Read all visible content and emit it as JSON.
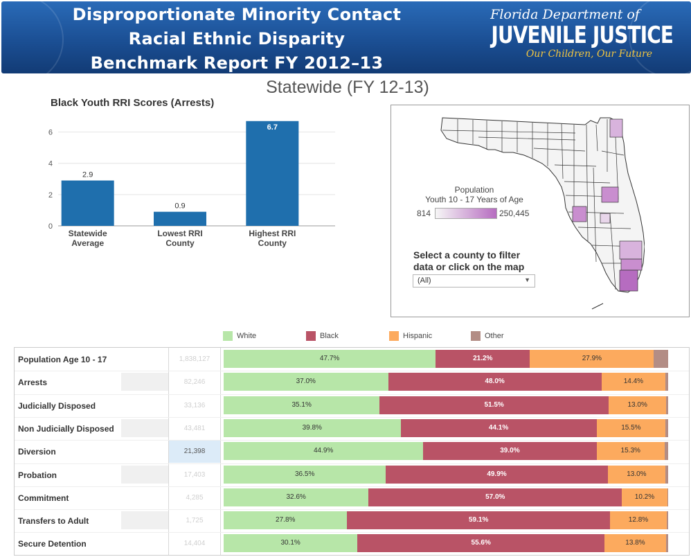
{
  "banner": {
    "title_lines": [
      "Disproportionate Minority Contact",
      "Racial Ethnic Disparity",
      "Benchmark Report FY 2012–13"
    ],
    "dept_line1": "Florida Department of",
    "dept_line2": "JUVENILE JUSTICE",
    "dept_line3": "Our Children, Our Future"
  },
  "page_title": "Statewide (FY 12-13)",
  "chart_data": {
    "type": "bar",
    "title": "Black Youth RRI Scores (Arrests)",
    "categories": [
      [
        "Statewide",
        "Average"
      ],
      [
        "Lowest RRI",
        "County"
      ],
      [
        "Highest RRI",
        "County"
      ]
    ],
    "values": [
      2.9,
      0.9,
      6.7
    ],
    "value_labels": [
      "2.9",
      "0.9",
      "6.7"
    ],
    "yticks": [
      0,
      2,
      4,
      6
    ],
    "ylim": [
      0,
      7
    ],
    "color": "#1f6fad"
  },
  "map": {
    "legend_title_line1": "Population",
    "legend_title_line2": "Youth 10 - 17 Years of Age",
    "legend_min": "814",
    "legend_max": "250,445",
    "filter_label_line1": "Select a county to filter",
    "filter_label_line2": "data or click on the map",
    "filter_value": "(All)"
  },
  "legend": {
    "items": [
      {
        "label": "White",
        "color": "#b7e6a8"
      },
      {
        "label": "Black",
        "color": "#b95366"
      },
      {
        "label": "Hispanic",
        "color": "#fcaa5e"
      },
      {
        "label": "Other",
        "color": "#b38d85"
      }
    ]
  },
  "table": {
    "rows": [
      {
        "label": "Population Age 10 - 17",
        "count": "1,838,127",
        "white": 47.7,
        "black": 21.2,
        "hispanic": 27.9,
        "other": 3.2,
        "wl": "47.7%",
        "bl": "21.2%",
        "hl": "27.9%"
      },
      {
        "label": "Arrests",
        "count": "82,246",
        "white": 37.0,
        "black": 48.0,
        "hispanic": 14.4,
        "other": 0.6,
        "wl": "37.0%",
        "bl": "48.0%",
        "hl": "14.4%"
      },
      {
        "label": "Judicially Disposed",
        "count": "33,136",
        "white": 35.1,
        "black": 51.5,
        "hispanic": 13.0,
        "other": 0.4,
        "wl": "35.1%",
        "bl": "51.5%",
        "hl": "13.0%"
      },
      {
        "label": "Non Judicially Disposed",
        "count": "43,481",
        "white": 39.8,
        "black": 44.1,
        "hispanic": 15.5,
        "other": 0.6,
        "wl": "39.8%",
        "bl": "44.1%",
        "hl": "15.5%"
      },
      {
        "label": "Diversion",
        "count": "21,398",
        "white": 44.9,
        "black": 39.0,
        "hispanic": 15.3,
        "other": 0.8,
        "wl": "44.9%",
        "bl": "39.0%",
        "hl": "15.3%",
        "highlight": true
      },
      {
        "label": "Probation",
        "count": "17,403",
        "white": 36.5,
        "black": 49.9,
        "hispanic": 13.0,
        "other": 0.6,
        "wl": "36.5%",
        "bl": "49.9%",
        "hl": "13.0%"
      },
      {
        "label": "Commitment",
        "count": "4,285",
        "white": 32.6,
        "black": 57.0,
        "hispanic": 10.2,
        "other": 0.2,
        "wl": "32.6%",
        "bl": "57.0%",
        "hl": "10.2%"
      },
      {
        "label": "Transfers to Adult",
        "count": "1,725",
        "white": 27.8,
        "black": 59.1,
        "hispanic": 12.8,
        "other": 0.3,
        "wl": "27.8%",
        "bl": "59.1%",
        "hl": "12.8%"
      },
      {
        "label": "Secure Detention",
        "count": "14,404",
        "white": 30.1,
        "black": 55.6,
        "hispanic": 13.8,
        "other": 0.5,
        "wl": "30.1%",
        "bl": "55.6%",
        "hl": "13.8%"
      }
    ]
  }
}
